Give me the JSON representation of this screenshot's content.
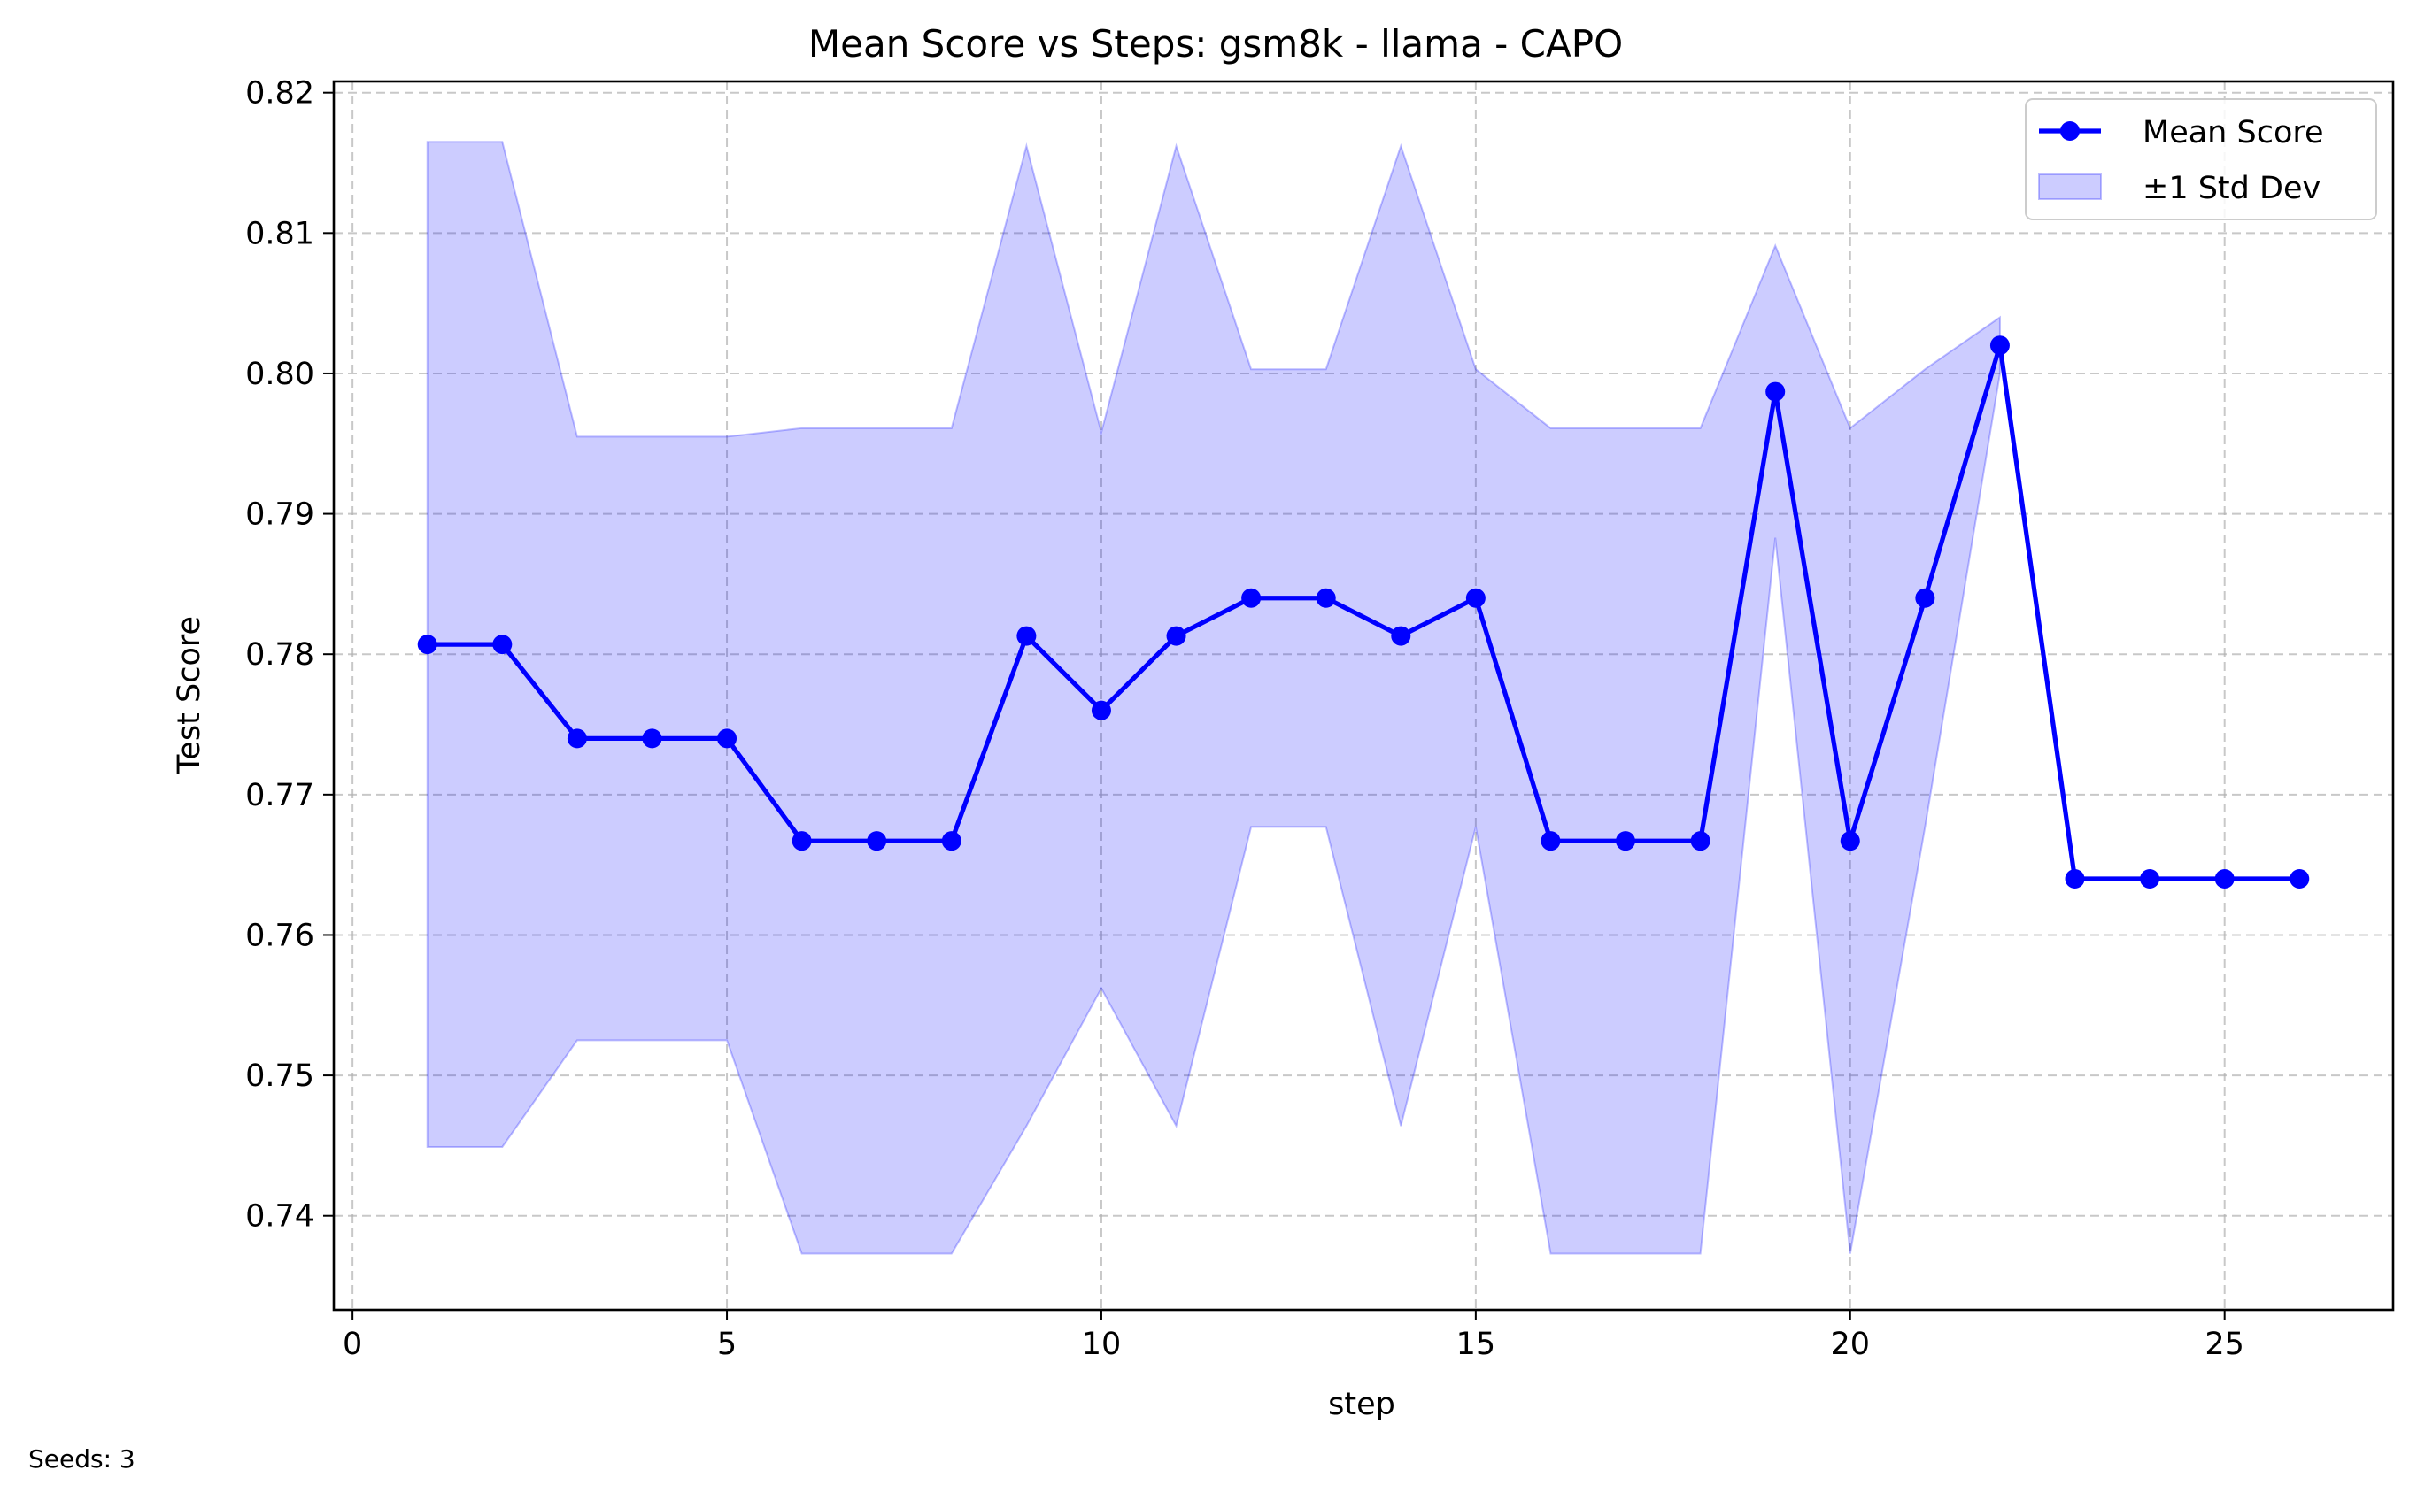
{
  "footnote": "Seeds: 3",
  "chart_data": {
    "type": "line",
    "title": "Mean Score vs Steps: gsm8k - llama - CAPO",
    "xlabel": "step",
    "ylabel": "Test Score",
    "xlim": [
      -0.25,
      27.25
    ],
    "ylim": [
      0.7333,
      0.8208
    ],
    "xticks": [
      0,
      5,
      10,
      15,
      20,
      25
    ],
    "xtick_labels": [
      "0",
      "5",
      "10",
      "15",
      "20",
      "25"
    ],
    "yticks": [
      0.74,
      0.75,
      0.76,
      0.77,
      0.78,
      0.79,
      0.8,
      0.81,
      0.82
    ],
    "ytick_labels": [
      "0.74",
      "0.75",
      "0.76",
      "0.77",
      "0.78",
      "0.79",
      "0.80",
      "0.81",
      "0.82"
    ],
    "grid": true,
    "legend_position": "top-right",
    "x": [
      1,
      2,
      3,
      4,
      5,
      6,
      7,
      8,
      9,
      10,
      11,
      12,
      13,
      14,
      15,
      16,
      17,
      18,
      19,
      20,
      21,
      22,
      23,
      24,
      25,
      26
    ],
    "series": [
      {
        "name": "Mean Score",
        "color": "#0000ff",
        "values": [
          0.7807,
          0.7807,
          0.774,
          0.774,
          0.774,
          0.7667,
          0.7667,
          0.7667,
          0.7813,
          0.776,
          0.7813,
          0.784,
          0.784,
          0.7813,
          0.784,
          0.7667,
          0.7667,
          0.7667,
          0.7987,
          0.7667,
          0.784,
          0.802,
          0.764,
          0.764,
          0.764,
          0.764
        ]
      }
    ],
    "band": {
      "name": "±1 Std Dev",
      "color": "#0000ff",
      "x": [
        1,
        2,
        3,
        4,
        5,
        6,
        7,
        8,
        9,
        10,
        11,
        12,
        13,
        14,
        15,
        16,
        17,
        18,
        19,
        20,
        21,
        22
      ],
      "upper": [
        0.8165,
        0.8165,
        0.7955,
        0.7955,
        0.7955,
        0.7961,
        0.7961,
        0.7961,
        0.8162,
        0.7958,
        0.8162,
        0.8003,
        0.8003,
        0.8162,
        0.8003,
        0.7961,
        0.7961,
        0.7961,
        0.8091,
        0.7961,
        0.8003,
        0.804
      ],
      "lower": [
        0.7449,
        0.7449,
        0.7525,
        0.7525,
        0.7525,
        0.7373,
        0.7373,
        0.7373,
        0.7464,
        0.7562,
        0.7464,
        0.7677,
        0.7677,
        0.7464,
        0.7677,
        0.7373,
        0.7373,
        0.7373,
        0.7883,
        0.7373,
        0.7677,
        0.8
      ]
    }
  }
}
